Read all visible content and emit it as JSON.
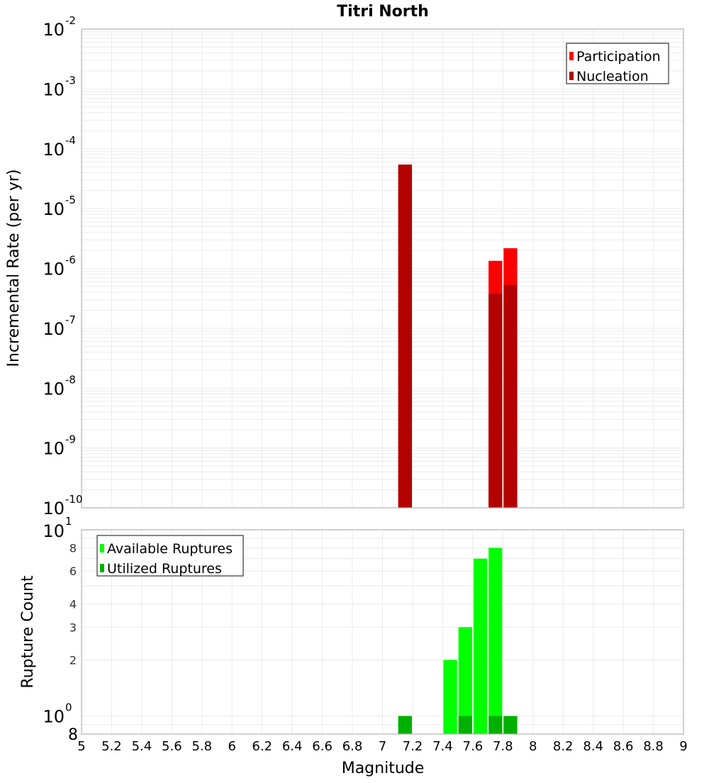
{
  "title": "Titri North",
  "colors": {
    "participation": "#ff0000",
    "nucleation": "#b30000",
    "available": "#00ff00",
    "utilized": "#00b000",
    "grid": "#ebebeb",
    "axis": "#b0b0b0"
  },
  "chart_data": [
    {
      "type": "bar",
      "title": "Titri North",
      "xlabel": "Magnitude",
      "ylabel": "Incremental Rate (per yr)",
      "yscale": "log",
      "ylim": [
        1e-10,
        0.01
      ],
      "xlim": [
        5,
        9
      ],
      "bin_width": 0.1,
      "grid": true,
      "legend_position": "top-right",
      "y_tick_labels": [
        {
          "base": "10",
          "exp": "-2",
          "value": 0.01
        },
        {
          "base": "10",
          "exp": "-3",
          "value": 0.001
        },
        {
          "base": "10",
          "exp": "-4",
          "value": 0.0001
        },
        {
          "base": "10",
          "exp": "-5",
          "value": 1e-05
        },
        {
          "base": "10",
          "exp": "-6",
          "value": 1e-06
        },
        {
          "base": "10",
          "exp": "-7",
          "value": 1e-07
        },
        {
          "base": "10",
          "exp": "-8",
          "value": 1e-08
        },
        {
          "base": "10",
          "exp": "-9",
          "value": 1e-09
        },
        {
          "base": "10",
          "exp": "-10",
          "value": 1e-10
        }
      ],
      "x": [
        7.15,
        7.75,
        7.85
      ],
      "series": [
        {
          "name": "Participation",
          "color_key": "participation",
          "values": [
            5.45e-05,
            1.34e-06,
            2.18e-06
          ]
        },
        {
          "name": "Nucleation",
          "color_key": "nucleation",
          "values": [
            5.45e-05,
            3.8e-07,
            5.3e-07
          ]
        }
      ]
    },
    {
      "type": "bar",
      "xlabel": "Magnitude",
      "ylabel": "Rupture Count",
      "yscale": "log",
      "ylim": [
        0.8,
        10
      ],
      "xlim": [
        5,
        9
      ],
      "bin_width": 0.1,
      "grid": true,
      "legend_position": "top-left",
      "y_tick_labels": [
        {
          "base": "10",
          "exp": "1",
          "value": 10,
          "major": true
        },
        {
          "base": "8",
          "exp": "",
          "value": 8
        },
        {
          "base": "6",
          "exp": "",
          "value": 6
        },
        {
          "base": "4",
          "exp": "",
          "value": 4
        },
        {
          "base": "3",
          "exp": "",
          "value": 3
        },
        {
          "base": "2",
          "exp": "",
          "value": 2
        },
        {
          "base": "10",
          "exp": "0",
          "value": 1,
          "major": true
        },
        {
          "base": "8",
          "exp": "",
          "value": 0.8,
          "major": true
        }
      ],
      "x": [
        7.15,
        7.45,
        7.55,
        7.65,
        7.75,
        7.85
      ],
      "series": [
        {
          "name": "Available Ruptures",
          "color_key": "available",
          "values": [
            1,
            2,
            3,
            7,
            8,
            1
          ]
        },
        {
          "name": "Utilized Ruptures",
          "color_key": "utilized",
          "values": [
            1,
            0,
            1,
            0,
            1,
            1
          ]
        }
      ]
    }
  ],
  "x_tick_labels": [
    "5",
    "5.2",
    "5.4",
    "5.6",
    "5.8",
    "6",
    "6.2",
    "6.4",
    "6.6",
    "6.8",
    "7",
    "7.2",
    "7.4",
    "7.6",
    "7.8",
    "8",
    "8.2",
    "8.4",
    "8.6",
    "8.8",
    "9"
  ]
}
